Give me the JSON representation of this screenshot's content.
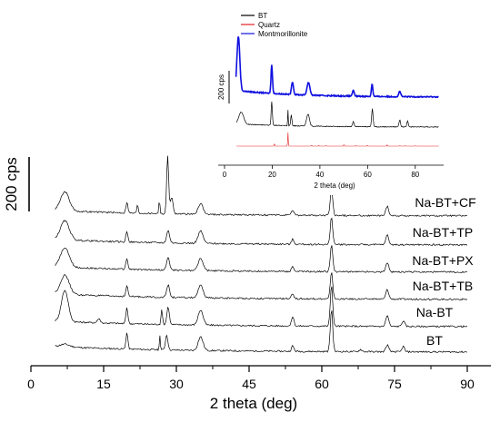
{
  "chart_data": [
    {
      "type": "line",
      "xlabel": "2 theta (deg)",
      "ylabel": "",
      "xlim": [
        0,
        90
      ],
      "xticks": [
        "0",
        "15",
        "30",
        "45",
        "60",
        "75",
        "90"
      ],
      "scale_bar_label": "200 cps",
      "scale_bar_value": 200,
      "grid": false,
      "series": [
        {
          "name": "BT",
          "color": "#000000",
          "peaks": [
            [
              7,
              10,
              1.0
            ],
            [
              19.8,
              60,
              0.2
            ],
            [
              26.6,
              55,
              0.1
            ],
            [
              28.0,
              55,
              0.25
            ],
            [
              35,
              50,
              0.5
            ],
            [
              54,
              20,
              0.25
            ],
            [
              62,
              155,
              0.25
            ],
            [
              68,
              8,
              0.3
            ],
            [
              73.5,
              25,
              0.3
            ],
            [
              76.8,
              20,
              0.25
            ]
          ]
        },
        {
          "name": "Na-BT",
          "color": "#000000",
          "peaks": [
            [
              7,
              115,
              0.7
            ],
            [
              14,
              15,
              0.3
            ],
            [
              19.8,
              60,
              0.2
            ],
            [
              27,
              55,
              0.15
            ],
            [
              28.3,
              65,
              0.25
            ],
            [
              35,
              55,
              0.5
            ],
            [
              54,
              35,
              0.25
            ],
            [
              62,
              150,
              0.25
            ],
            [
              73.5,
              40,
              0.3
            ],
            [
              76.8,
              20,
              0.3
            ]
          ]
        },
        {
          "name": "Na-BT+TB",
          "color": "#000000",
          "peaks": [
            [
              7,
              70,
              0.9
            ],
            [
              19.8,
              40,
              0.2
            ],
            [
              28.3,
              45,
              0.3
            ],
            [
              35,
              45,
              0.5
            ],
            [
              54,
              18,
              0.25
            ],
            [
              62,
              100,
              0.25
            ],
            [
              73.5,
              35,
              0.3
            ]
          ]
        },
        {
          "name": "Na-BT+PX",
          "color": "#000000",
          "peaks": [
            [
              7,
              70,
              0.9
            ],
            [
              19.8,
              40,
              0.2
            ],
            [
              28.3,
              45,
              0.3
            ],
            [
              35,
              45,
              0.5
            ],
            [
              54,
              18,
              0.25
            ],
            [
              62,
              100,
              0.25
            ],
            [
              73.5,
              35,
              0.3
            ]
          ]
        },
        {
          "name": "Na-BT+TP",
          "color": "#000000",
          "peaks": [
            [
              7,
              70,
              0.9
            ],
            [
              19.8,
              40,
              0.2
            ],
            [
              28.3,
              45,
              0.3
            ],
            [
              35,
              45,
              0.5
            ],
            [
              54,
              18,
              0.25
            ],
            [
              62,
              100,
              0.25
            ],
            [
              73.5,
              35,
              0.3
            ]
          ]
        },
        {
          "name": "Na-BT+CF",
          "color": "#000000",
          "peaks": [
            [
              7,
              70,
              0.9
            ],
            [
              19.8,
              40,
              0.2
            ],
            [
              22,
              30,
              0.15
            ],
            [
              26.5,
              50,
              0.12
            ],
            [
              28.2,
              210,
              0.2
            ],
            [
              29,
              60,
              0.3
            ],
            [
              35,
              40,
              0.5
            ],
            [
              54,
              18,
              0.25
            ],
            [
              62,
              100,
              0.25
            ],
            [
              73.5,
              35,
              0.3
            ]
          ]
        }
      ]
    },
    {
      "type": "line",
      "inset": true,
      "xlabel": "2 theta (deg)",
      "ylabel": "",
      "xlim": [
        0,
        90
      ],
      "xticks": [
        "0",
        "20",
        "40",
        "60",
        "80"
      ],
      "scale_bar_label": "200 cps",
      "scale_bar_value": 200,
      "legend_position": "top-left",
      "series": [
        {
          "name": "BT",
          "color": "#000000",
          "peaks": [
            [
              7,
              60,
              1.0
            ],
            [
              19.8,
              120,
              0.25
            ],
            [
              26.6,
              80,
              0.12
            ],
            [
              28,
              55,
              0.25
            ],
            [
              35,
              60,
              0.6
            ],
            [
              54,
              25,
              0.3
            ],
            [
              62,
              90,
              0.3
            ],
            [
              73.5,
              35,
              0.3
            ],
            [
              76.8,
              30,
              0.3
            ]
          ]
        },
        {
          "name": "Quartz",
          "color": "#e32222",
          "peaks": [
            [
              20.9,
              20,
              0.12
            ],
            [
              26.6,
              100,
              0.12
            ],
            [
              36.5,
              8,
              0.1
            ],
            [
              39.5,
              7,
              0.1
            ],
            [
              42.5,
              6,
              0.1
            ],
            [
              50.1,
              14,
              0.1
            ],
            [
              55,
              5,
              0.1
            ],
            [
              59.9,
              9,
              0.1
            ],
            [
              68.2,
              9,
              0.1
            ],
            [
              73.5,
              3,
              0.1
            ],
            [
              75.7,
              3,
              0.1
            ],
            [
              80,
              3,
              0.1
            ]
          ]
        },
        {
          "name": "Montmorillonite",
          "color": "#1010e0",
          "peaks": [
            [
              5.8,
              300,
              0.6
            ],
            [
              19.8,
              160,
              0.3
            ],
            [
              28.5,
              70,
              0.4
            ],
            [
              35.2,
              70,
              0.6
            ],
            [
              54,
              30,
              0.4
            ],
            [
              61.9,
              70,
              0.3
            ],
            [
              73.5,
              30,
              0.4
            ]
          ]
        }
      ]
    }
  ],
  "series_labels": [
    "Na-BT+CF",
    "Na-BT+TP",
    "Na-BT+PX",
    "Na-BT+TB",
    "Na-BT",
    "BT"
  ]
}
